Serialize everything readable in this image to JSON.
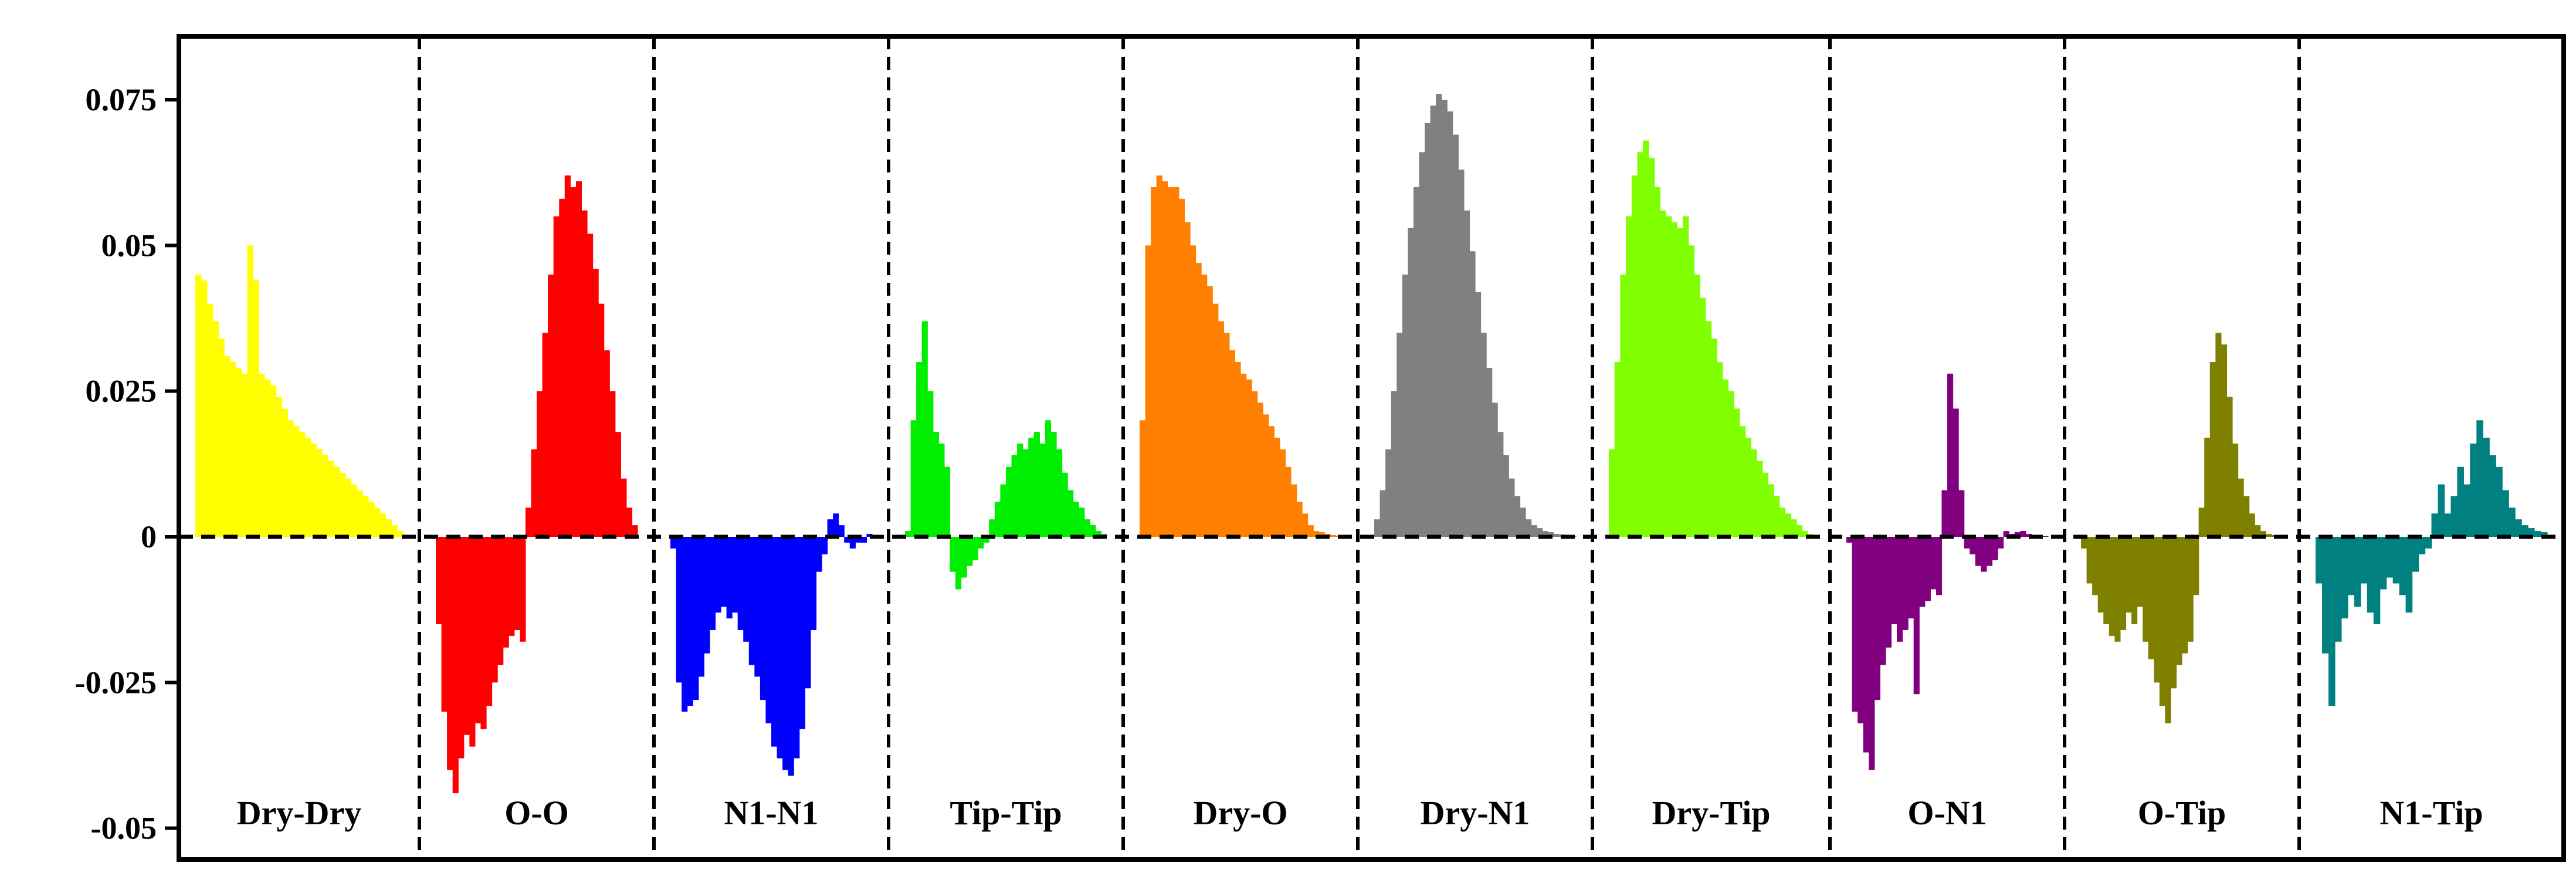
{
  "chart_data": {
    "type": "area",
    "title": "",
    "xlabel": "",
    "ylabel": "",
    "ylim": [
      -0.05,
      0.08
    ],
    "y_ticks": [
      {
        "value": 0.075,
        "label": "0.075"
      },
      {
        "value": 0.05,
        "label": "0.05"
      },
      {
        "value": 0.025,
        "label": "0.025"
      },
      {
        "value": 0,
        "label": "0"
      },
      {
        "value": -0.025,
        "label": "-0.025"
      },
      {
        "value": -0.05,
        "label": "-0.05"
      }
    ],
    "grid": false,
    "zero_line": "dashed",
    "panel_separators": "dashed",
    "panels": [
      {
        "label": "Dry-Dry",
        "color": "#ffff00",
        "values": [
          0.045,
          0.044,
          0.04,
          0.037,
          0.034,
          0.031,
          0.03,
          0.029,
          0.028,
          0.05,
          0.044,
          0.028,
          0.027,
          0.026,
          0.024,
          0.022,
          0.02,
          0.019,
          0.018,
          0.017,
          0.016,
          0.015,
          0.014,
          0.013,
          0.012,
          0.011,
          0.01,
          0.009,
          0.008,
          0.007,
          0.006,
          0.005,
          0.004,
          0.003,
          0.002,
          0.001
        ]
      },
      {
        "label": "O-O",
        "color": "#ff0000",
        "values": [
          -0.015,
          -0.03,
          -0.04,
          -0.044,
          -0.038,
          -0.034,
          -0.036,
          -0.032,
          -0.033,
          -0.029,
          -0.025,
          -0.022,
          -0.019,
          -0.017,
          -0.016,
          -0.018,
          0.005,
          0.015,
          0.025,
          0.035,
          0.045,
          0.055,
          0.058,
          0.062,
          0.06,
          0.061,
          0.056,
          0.052,
          0.046,
          0.04,
          0.032,
          0.025,
          0.018,
          0.01,
          0.005,
          0.002
        ]
      },
      {
        "label": "N1-N1",
        "color": "#0000ff",
        "values": [
          -0.002,
          -0.025,
          -0.03,
          -0.029,
          -0.028,
          -0.024,
          -0.02,
          -0.016,
          -0.013,
          -0.012,
          -0.014,
          -0.013,
          -0.016,
          -0.018,
          -0.022,
          -0.024,
          -0.028,
          -0.032,
          -0.036,
          -0.038,
          -0.04,
          -0.041,
          -0.038,
          -0.033,
          -0.026,
          -0.016,
          -0.006,
          -0.003,
          0.003,
          0.004,
          0.002,
          -0.001,
          -0.002,
          -0.001,
          -0.001,
          0.0005
        ]
      },
      {
        "label": "Tip-Tip",
        "color": "#00ee00",
        "values": [
          0.001,
          0.02,
          0.03,
          0.037,
          0.025,
          0.018,
          0.016,
          0.012,
          -0.006,
          -0.009,
          -0.007,
          -0.005,
          -0.004,
          -0.002,
          -0.001,
          0.003,
          0.006,
          0.009,
          0.012,
          0.014,
          0.016,
          0.015,
          0.017,
          0.018,
          0.016,
          0.02,
          0.018,
          0.015,
          0.011,
          0.008,
          0.006,
          0.005,
          0.003,
          0.002,
          0.001,
          0.0005
        ]
      },
      {
        "label": "Dry-O",
        "color": "#ff8000",
        "values": [
          0.02,
          0.05,
          0.06,
          0.062,
          0.061,
          0.06,
          0.06,
          0.058,
          0.054,
          0.05,
          0.047,
          0.045,
          0.043,
          0.04,
          0.037,
          0.035,
          0.032,
          0.03,
          0.028,
          0.027,
          0.025,
          0.023,
          0.021,
          0.019,
          0.017,
          0.015,
          0.012,
          0.009,
          0.006,
          0.004,
          0.002,
          0.001,
          0.0008,
          0.0005,
          0.0003,
          0.0002
        ]
      },
      {
        "label": "Dry-N1",
        "color": "#808080",
        "values": [
          0.003,
          0.008,
          0.015,
          0.025,
          0.035,
          0.045,
          0.053,
          0.06,
          0.066,
          0.071,
          0.074,
          0.076,
          0.075,
          0.073,
          0.069,
          0.063,
          0.056,
          0.049,
          0.042,
          0.035,
          0.029,
          0.023,
          0.018,
          0.014,
          0.01,
          0.007,
          0.005,
          0.003,
          0.002,
          0.0015,
          0.001,
          0.0008,
          0.0005,
          0.0004,
          0.0002,
          0.0001
        ]
      },
      {
        "label": "Dry-Tip",
        "color": "#80ff00",
        "values": [
          0.015,
          0.03,
          0.045,
          0.055,
          0.062,
          0.066,
          0.068,
          0.065,
          0.06,
          0.056,
          0.055,
          0.054,
          0.053,
          0.055,
          0.05,
          0.045,
          0.041,
          0.037,
          0.034,
          0.03,
          0.027,
          0.025,
          0.022,
          0.019,
          0.017,
          0.015,
          0.013,
          0.011,
          0.009,
          0.007,
          0.005,
          0.004,
          0.003,
          0.002,
          0.001,
          0.0005
        ]
      },
      {
        "label": "O-N1",
        "color": "#800080",
        "values": [
          -0.001,
          -0.03,
          -0.032,
          -0.037,
          -0.04,
          -0.028,
          -0.022,
          -0.019,
          -0.015,
          -0.018,
          -0.016,
          -0.014,
          -0.027,
          -0.012,
          -0.011,
          -0.009,
          -0.01,
          0.008,
          0.028,
          0.022,
          0.008,
          -0.002,
          -0.003,
          -0.005,
          -0.006,
          -0.005,
          -0.004,
          -0.002,
          0.001,
          0.0005,
          0.0008,
          0.001,
          0.0005,
          0.0003,
          0.0002,
          0.0001
        ]
      },
      {
        "label": "O-Tip",
        "color": "#808000",
        "values": [
          -0.002,
          -0.008,
          -0.01,
          -0.013,
          -0.015,
          -0.017,
          -0.018,
          -0.016,
          -0.013,
          -0.015,
          -0.012,
          -0.018,
          -0.021,
          -0.025,
          -0.029,
          -0.032,
          -0.026,
          -0.022,
          -0.02,
          -0.018,
          -0.01,
          0.005,
          0.017,
          0.03,
          0.035,
          0.033,
          0.024,
          0.016,
          0.01,
          0.007,
          0.004,
          0.002,
          0.001,
          0.0005,
          0.0003,
          0.0002
        ]
      },
      {
        "label": "N1-Tip",
        "color": "#008080",
        "values": [
          -0.008,
          -0.02,
          -0.029,
          -0.018,
          -0.014,
          -0.01,
          -0.012,
          -0.008,
          -0.013,
          -0.015,
          -0.009,
          -0.007,
          -0.008,
          -0.01,
          -0.013,
          -0.006,
          -0.003,
          -0.002,
          0.004,
          0.009,
          0.004,
          0.007,
          0.012,
          0.009,
          0.016,
          0.02,
          0.017,
          0.014,
          0.012,
          0.008,
          0.005,
          0.003,
          0.002,
          0.0015,
          0.001,
          0.0008
        ]
      }
    ]
  }
}
